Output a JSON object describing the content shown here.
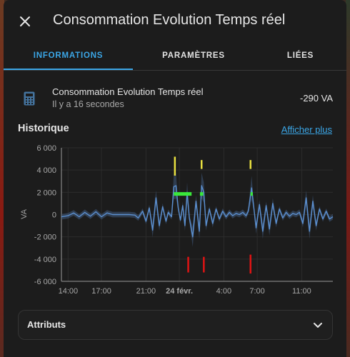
{
  "dialog": {
    "title": "Consommation Evolution Temps réel"
  },
  "tabs": [
    {
      "label": "INFORMATIONS",
      "active": true
    },
    {
      "label": "PARAMÈTRES",
      "active": false
    },
    {
      "label": "LIÉES",
      "active": false
    }
  ],
  "entity": {
    "name": "Consommation Evolution Temps réel",
    "last_changed": "Il y a 16 secondes",
    "state": "-290 VA",
    "icon": "calculator-icon"
  },
  "history": {
    "title": "Historique",
    "show_more": "Afficher plus"
  },
  "chart_data": {
    "type": "line",
    "title": "",
    "ylabel": "VA",
    "ylim": [
      -6000,
      6000
    ],
    "yticks": [
      6000,
      4000,
      2000,
      0,
      -2000,
      -4000,
      -6000
    ],
    "ytick_labels": [
      "6 000",
      "4 000",
      "2 000",
      "0",
      "-2 000",
      "-4 000",
      "-6 000"
    ],
    "xlim": [
      13.4,
      37.8
    ],
    "xticks": [
      14,
      17,
      21,
      24,
      28,
      31,
      35
    ],
    "xtick_labels": [
      "14:00",
      "17:00",
      "21:00",
      "24 févr.",
      "4:00",
      "7:00",
      "11:00"
    ],
    "xtick_bold": [
      false,
      false,
      false,
      true,
      false,
      false,
      false
    ],
    "grid": true,
    "colors": {
      "line": "#5b8fcf",
      "band": "#405a7c",
      "high": "#39e83a",
      "peak": "#e8e040",
      "trough": "#e01414",
      "grid": "#2c2c2c",
      "axis": "#9a9a9a"
    },
    "series": [
      {
        "values": [
          [
            13.4,
            -200
          ],
          [
            14.0,
            -100
          ],
          [
            14.5,
            150
          ],
          [
            15.0,
            -200
          ],
          [
            15.5,
            200
          ],
          [
            16.0,
            -150
          ],
          [
            16.5,
            250
          ],
          [
            17.0,
            -200
          ],
          [
            17.5,
            150
          ],
          [
            18.0,
            0
          ],
          [
            18.5,
            0
          ],
          [
            19.5,
            0
          ],
          [
            20.0,
            -50
          ],
          [
            20.3,
            -300
          ],
          [
            20.7,
            300
          ],
          [
            21.0,
            -600
          ],
          [
            21.3,
            600
          ],
          [
            21.6,
            -1400
          ],
          [
            21.9,
            1500
          ],
          [
            22.2,
            -1000
          ],
          [
            22.5,
            700
          ],
          [
            22.8,
            -600
          ],
          [
            23.0,
            200
          ],
          [
            23.3,
            -200
          ],
          [
            23.5,
            2500
          ],
          [
            23.7,
            2600
          ],
          [
            23.9,
            600
          ],
          [
            24.1,
            -500
          ],
          [
            24.3,
            800
          ],
          [
            24.5,
            -1000
          ],
          [
            24.7,
            2000
          ],
          [
            24.9,
            -300
          ],
          [
            25.2,
            -2000
          ],
          [
            25.5,
            1200
          ],
          [
            25.8,
            -1500
          ],
          [
            26.0,
            2600
          ],
          [
            26.2,
            2000
          ],
          [
            26.4,
            -1000
          ],
          [
            26.7,
            500
          ],
          [
            27.0,
            -800
          ],
          [
            27.3,
            500
          ],
          [
            27.6,
            -400
          ],
          [
            27.9,
            300
          ],
          [
            28.2,
            -200
          ],
          [
            28.5,
            200
          ],
          [
            28.8,
            -100
          ],
          [
            29.1,
            100
          ],
          [
            29.4,
            0
          ],
          [
            29.7,
            200
          ],
          [
            30.0,
            -100
          ],
          [
            30.2,
            300
          ],
          [
            30.5,
            2400
          ],
          [
            30.7,
            600
          ],
          [
            30.9,
            -1200
          ],
          [
            31.2,
            900
          ],
          [
            31.5,
            -1500
          ],
          [
            31.8,
            800
          ],
          [
            32.1,
            -1300
          ],
          [
            32.4,
            1000
          ],
          [
            32.7,
            -800
          ],
          [
            33.0,
            500
          ],
          [
            33.3,
            -300
          ],
          [
            33.6,
            200
          ],
          [
            33.9,
            -150
          ],
          [
            34.2,
            100
          ],
          [
            34.5,
            0
          ],
          [
            34.8,
            200
          ],
          [
            35.1,
            -800
          ],
          [
            35.4,
            1500
          ],
          [
            35.7,
            -1500
          ],
          [
            36.0,
            1200
          ],
          [
            36.3,
            -1000
          ],
          [
            36.6,
            500
          ],
          [
            36.9,
            -400
          ],
          [
            37.2,
            300
          ],
          [
            37.5,
            -400
          ],
          [
            37.8,
            -200
          ]
        ]
      }
    ],
    "markers": {
      "peak_ticks": [
        {
          "x": 23.6,
          "y1": 3500,
          "y2": 5200
        },
        {
          "x": 26.0,
          "y1": 4100,
          "y2": 4900
        },
        {
          "x": 30.4,
          "y1": 4100,
          "y2": 4900
        }
      ],
      "high_bands": [
        {
          "x1": 23.5,
          "x2": 25.1,
          "y": 1850
        },
        {
          "x1": 25.85,
          "x2": 26.15,
          "y": 1850
        },
        {
          "x1": 30.4,
          "x2": 30.6,
          "y": 1850
        }
      ],
      "trough_ticks": [
        {
          "x": 24.8,
          "y1": -3800,
          "y2": -5200
        },
        {
          "x": 26.2,
          "y1": -3800,
          "y2": -5200
        },
        {
          "x": 30.4,
          "y1": -3600,
          "y2": -5300
        }
      ]
    }
  },
  "attributes": {
    "label": "Attributs"
  }
}
